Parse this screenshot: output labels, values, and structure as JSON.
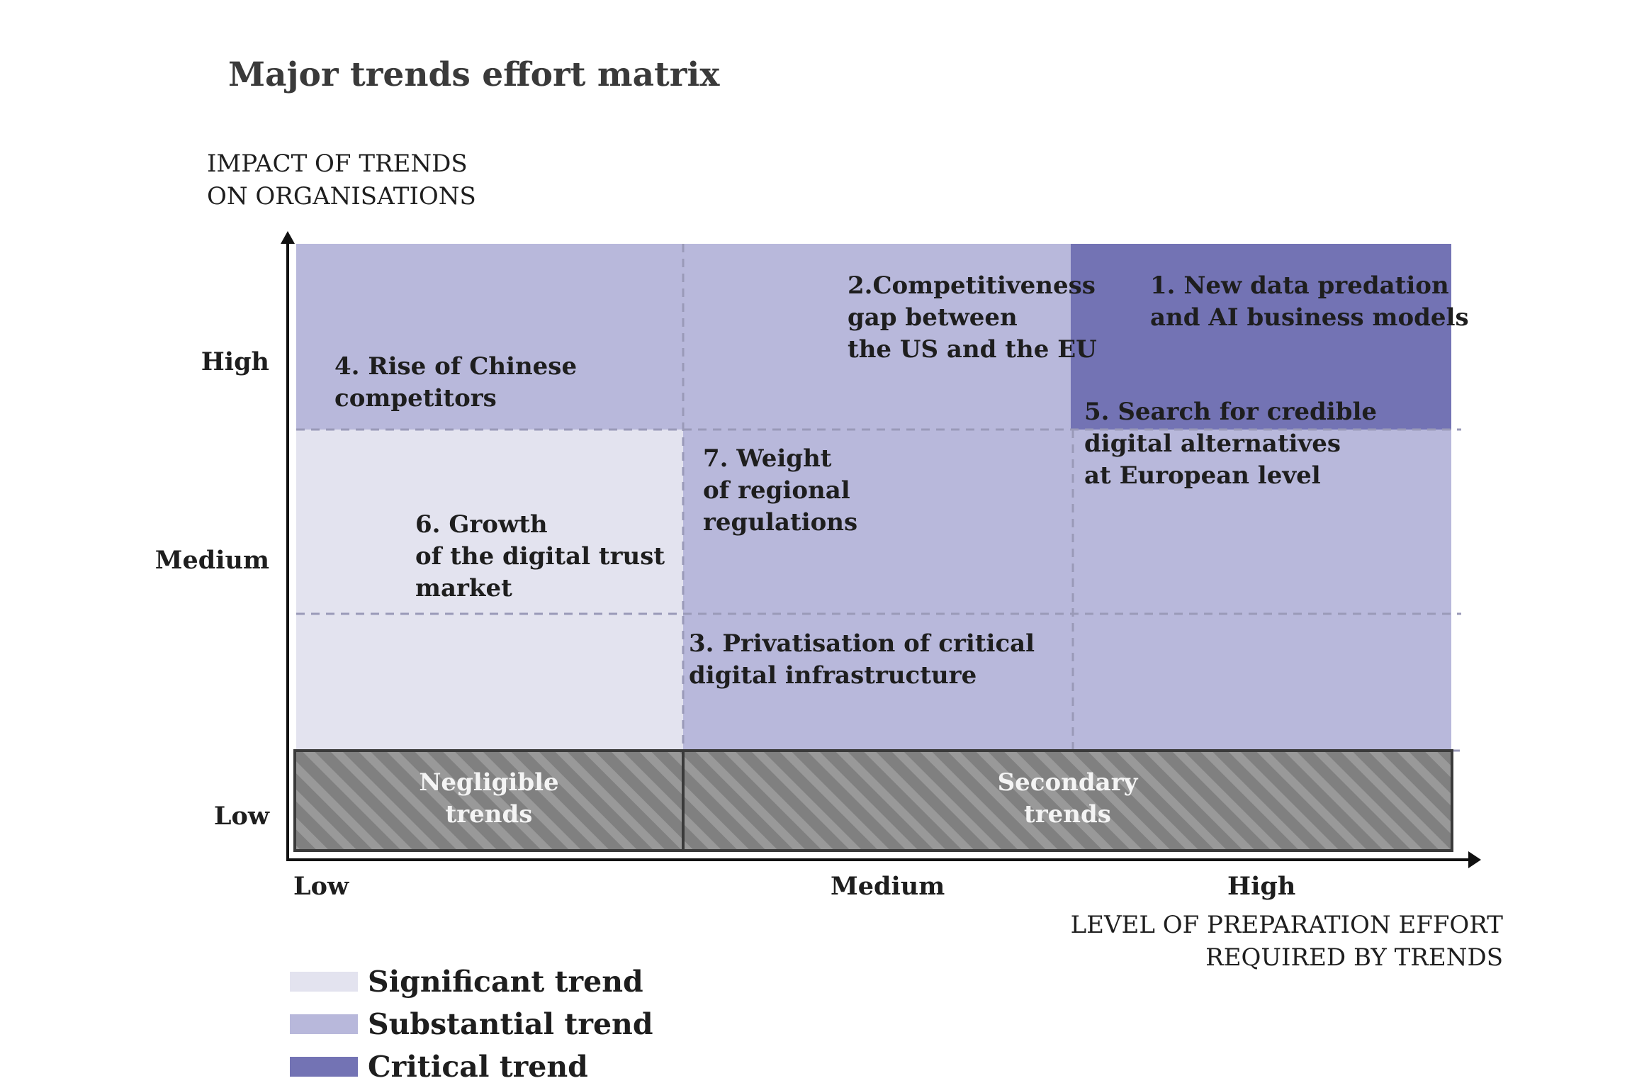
{
  "title": "Major trends effort matrix",
  "y_axis": {
    "title": "IMPACT OF TRENDS\nON ORGANISATIONS",
    "ticks": [
      "High",
      "Medium",
      "Low"
    ]
  },
  "x_axis": {
    "title": "LEVEL OF PREPARATION EFFORT\nREQUIRED BY TRENDS",
    "ticks": [
      "Low",
      "Medium",
      "High"
    ]
  },
  "trends": [
    {
      "label": "1. New data predation\nand AI business models"
    },
    {
      "label": "2.Competitiveness\ngap between\nthe US and the EU"
    },
    {
      "label": "3. Privatisation of critical\ndigital infrastructure"
    },
    {
      "label": "4. Rise of Chinese\ncompetitors"
    },
    {
      "label": "5. Search for credible\ndigital alternatives\nat European level"
    },
    {
      "label": "6. Growth\nof the digital trust\nmarket"
    },
    {
      "label": "7. Weight\nof regional\nregulations"
    }
  ],
  "zones": {
    "negligible": "Negligible\ntrends",
    "secondary": "Secondary\ntrends"
  },
  "legend": [
    {
      "label": "Significant trend",
      "color": "#e3e3ef"
    },
    {
      "label": "Substantial trend",
      "color": "#b8b8db"
    },
    {
      "label": "Critical trend",
      "color": "#7373b4"
    }
  ],
  "colors": {
    "significant": "#e3e3ef",
    "substantial": "#b8b8db",
    "critical": "#7373b4",
    "hatch_base": "#808080",
    "hatch_stripe": "#9a9a9a"
  }
}
